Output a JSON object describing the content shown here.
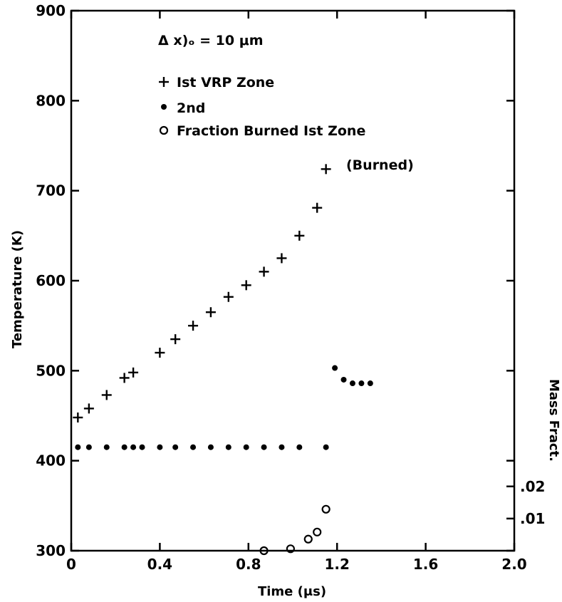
{
  "chart_data": {
    "type": "scatter",
    "xlabel": "Time (μs)",
    "ylabel": "Temperature (K)",
    "right_axis_label": "Mass Fract.",
    "xlim": [
      0,
      2.0
    ],
    "ylim": [
      300,
      900
    ],
    "x_ticks": [
      0,
      0.4,
      0.8,
      1.2,
      1.6,
      2.0
    ],
    "x_tick_labels": [
      "0",
      "0.4",
      "0.8",
      "1.2",
      "1.6",
      "2.0"
    ],
    "y_ticks": [
      300,
      400,
      500,
      600,
      700,
      800,
      900
    ],
    "y_tick_labels": [
      "300",
      "400",
      "500",
      "600",
      "700",
      "800",
      "900"
    ],
    "right_ticks": [
      0.01,
      0.02
    ],
    "right_tick_labels": [
      ".01",
      ".02"
    ],
    "right_axis_range": [
      0,
      0.028
    ],
    "annotation_param": "Δ x)ₒ = 10 μm",
    "annotation_burned": "(Burned)",
    "grid": false,
    "series": [
      {
        "name": "Ist VRP Zone",
        "marker": "plus",
        "x": [
          0.03,
          0.08,
          0.16,
          0.24,
          0.28,
          0.4,
          0.47,
          0.55,
          0.63,
          0.71,
          0.79,
          0.87,
          0.95,
          1.03,
          1.11,
          1.15
        ],
        "y": [
          448,
          458,
          473,
          492,
          498,
          520,
          535,
          550,
          565,
          582,
          595,
          610,
          625,
          650,
          681,
          724
        ]
      },
      {
        "name": "2nd",
        "marker": "dot",
        "x": [
          0.03,
          0.08,
          0.16,
          0.24,
          0.28,
          0.32,
          0.4,
          0.47,
          0.55,
          0.63,
          0.71,
          0.79,
          0.87,
          0.95,
          1.03,
          1.15,
          1.19,
          1.23,
          1.27,
          1.31,
          1.35
        ],
        "y": [
          415,
          415,
          415,
          415,
          415,
          415,
          415,
          415,
          415,
          415,
          415,
          415,
          415,
          415,
          415,
          415,
          503,
          490,
          486,
          486,
          486
        ]
      },
      {
        "name": "Fraction Burned Ist Zone",
        "marker": "circle",
        "x": [
          0.87,
          0.99,
          1.07,
          1.11,
          1.15
        ],
        "y": [
          0.0,
          0.0006,
          0.0036,
          0.0058,
          0.0129
        ]
      }
    ]
  }
}
